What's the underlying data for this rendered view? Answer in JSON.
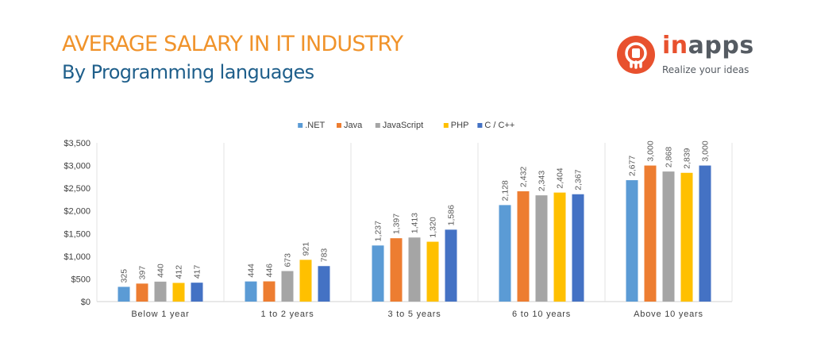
{
  "header": {
    "title": "AVERAGE SALARY IN IT INDUSTRY",
    "subtitle": "By Programming languages"
  },
  "logo": {
    "word_prefix": "in",
    "word_suffix": "apps",
    "tagline": "Realize your ideas",
    "mark_icon": "bulb-hand-icon",
    "colors": {
      "accent": "#e8512e",
      "text": "#555b62"
    }
  },
  "chart_data": {
    "type": "bar",
    "categories": [
      "Below 1 year",
      "1 to 2 years",
      "3 to 5 years",
      "6 to 10 years",
      "Above 10 years"
    ],
    "series": [
      {
        "name": ".NET",
        "color": "#5b9bd5",
        "values": [
          325,
          444,
          1237,
          2128,
          2677
        ]
      },
      {
        "name": "Java",
        "color": "#ed7d31",
        "values": [
          397,
          446,
          1397,
          2432,
          3000
        ]
      },
      {
        "name": "JavaScript",
        "color": "#a5a5a5",
        "values": [
          440,
          673,
          1413,
          2343,
          2868
        ]
      },
      {
        "name": "PHP",
        "color": "#ffc000",
        "values": [
          412,
          921,
          1320,
          2404,
          2839
        ]
      },
      {
        "name": "C / C++",
        "color": "#4472c4",
        "values": [
          417,
          783,
          1586,
          2367,
          3000
        ]
      }
    ],
    "value_labels": [
      [
        "325",
        "444",
        "1,237",
        "2,128",
        "2,677"
      ],
      [
        "397",
        "446",
        "1,397",
        "2,432",
        "3,000"
      ],
      [
        "440",
        "673",
        "1,413",
        "2,343",
        "2,868"
      ],
      [
        "412",
        "921",
        "1,320",
        "2,404",
        "2,839"
      ],
      [
        "417",
        "783",
        "1,586",
        "2,367",
        "3,000"
      ]
    ],
    "y_ticks": [
      0,
      500,
      1000,
      1500,
      2000,
      2500,
      3000,
      3500
    ],
    "y_tick_labels": [
      "$0",
      "$500",
      "$1,000",
      "$1,500",
      "$2,000",
      "$2,500",
      "$3,000",
      "$3,500"
    ],
    "ylim": [
      0,
      3500
    ],
    "legend_position": "top-center",
    "grid": false
  }
}
